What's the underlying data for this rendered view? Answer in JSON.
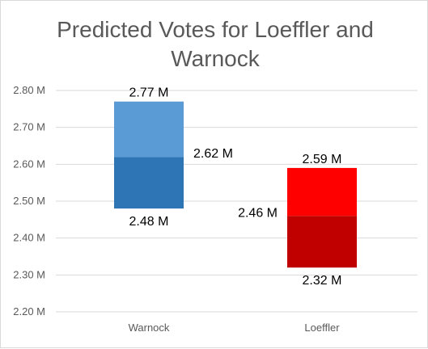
{
  "chart_data": {
    "type": "bar",
    "title": "Predicted Votes for Loeffler and Warnock",
    "xlabel": "",
    "ylabel": "",
    "categories": [
      "Warnock",
      "Loeffler"
    ],
    "ylim": [
      2.2,
      2.8
    ],
    "ytick_values": [
      2.2,
      2.3,
      2.4,
      2.5,
      2.6,
      2.7,
      2.8
    ],
    "ytick_labels": [
      "2.20 M",
      "2.30 M",
      "2.40 M",
      "2.50 M",
      "2.60 M",
      "2.70 M",
      "2.80 M"
    ],
    "grid": true,
    "legend": "none",
    "bars": [
      {
        "category": "Warnock",
        "low": 2.48,
        "mid": 2.62,
        "high": 2.77,
        "low_label": "2.48 M",
        "mid_label": "2.62 M",
        "high_label": "2.77 M",
        "lower_color": "#2e75b6",
        "upper_color": "#5b9bd5"
      },
      {
        "category": "Loeffler",
        "low": 2.32,
        "mid": 2.46,
        "high": 2.59,
        "low_label": "2.32 M",
        "mid_label": "2.46 M",
        "high_label": "2.59 M",
        "lower_color": "#c00000",
        "upper_color": "#ff0000"
      }
    ]
  }
}
